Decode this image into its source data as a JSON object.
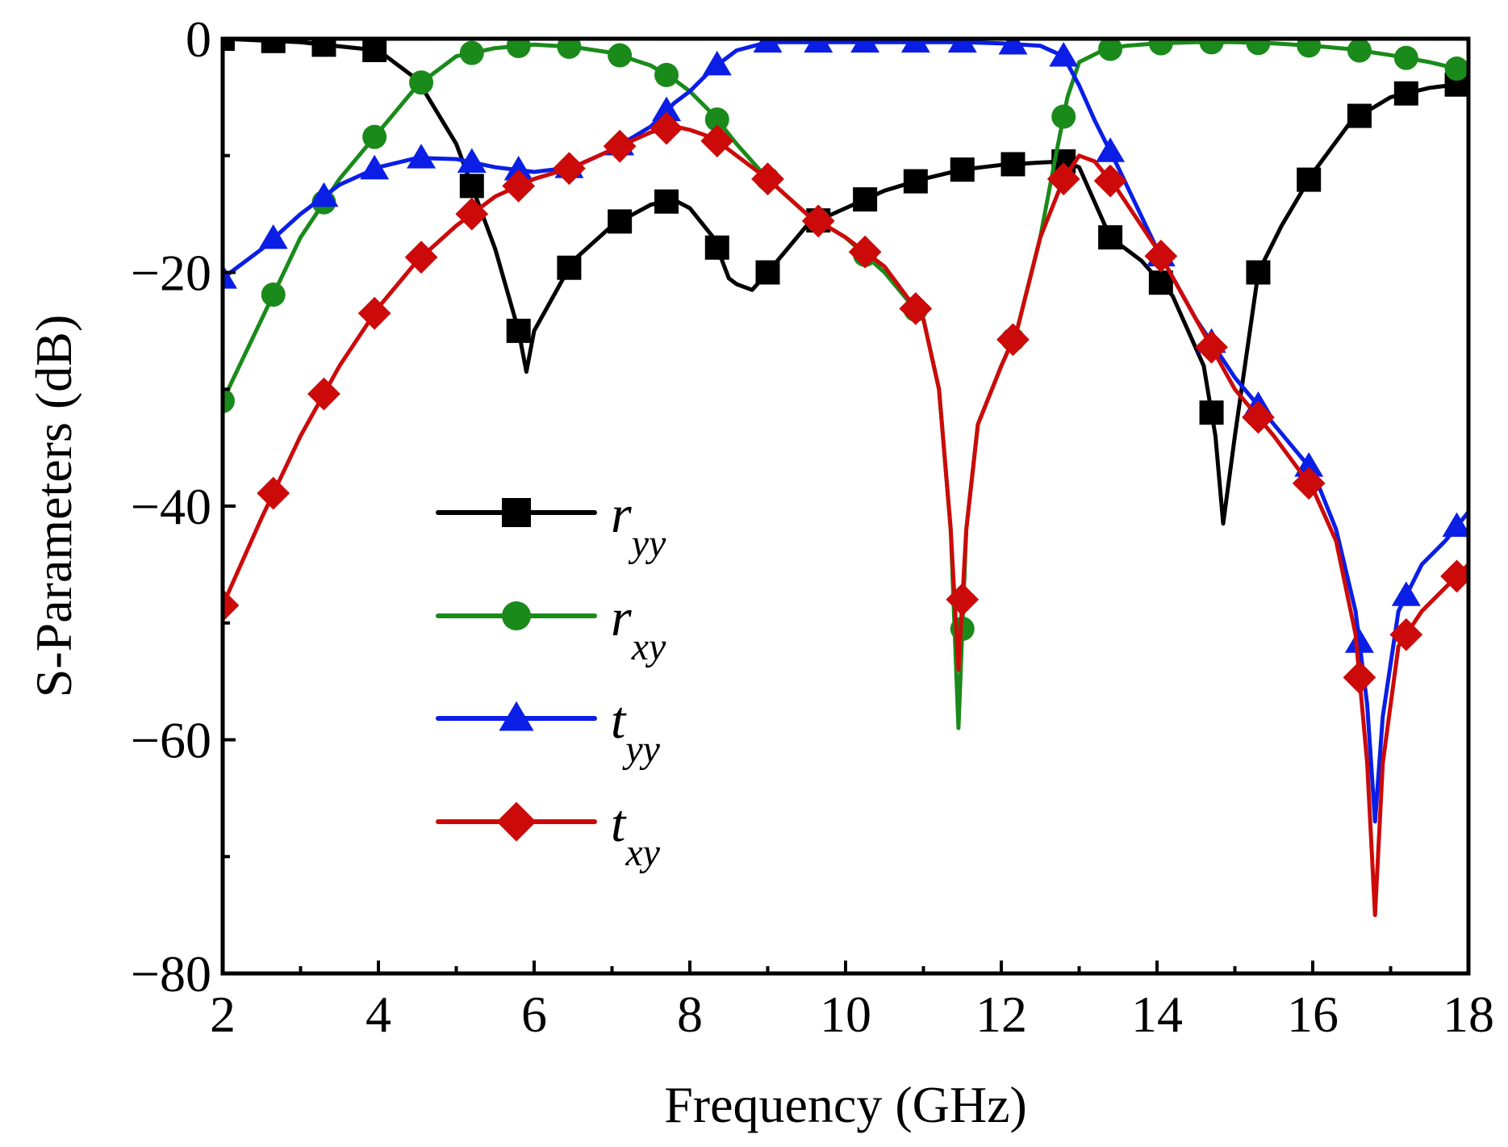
{
  "chart_data": {
    "type": "line",
    "title": "",
    "xlabel": "Frequency (GHz)",
    "ylabel": "S-Parameters (dB)",
    "xlim": [
      2,
      18
    ],
    "ylim": [
      -80,
      0
    ],
    "xticks": [
      2,
      4,
      6,
      8,
      10,
      12,
      14,
      16,
      18
    ],
    "yticks": [
      0,
      -20,
      -40,
      -60,
      -80
    ],
    "xtick_labels": [
      "2",
      "4",
      "6",
      "8",
      "10",
      "12",
      "14",
      "16",
      "18"
    ],
    "ytick_labels": [
      "0",
      "−20",
      "−40",
      "−60",
      "−80"
    ],
    "legend_position": "center-left",
    "series": [
      {
        "name": "r_yy",
        "label_main": "r",
        "label_sub": "yy",
        "color": "#000000",
        "marker": "square",
        "x": [
          2.0,
          3.0,
          4.0,
          4.5,
          5.0,
          5.5,
          5.8,
          5.9,
          6.0,
          6.5,
          7.0,
          7.5,
          7.8,
          8.0,
          8.3,
          8.5,
          8.6,
          8.8,
          9.0,
          9.5,
          10.0,
          10.5,
          11.0,
          11.5,
          12.0,
          12.5,
          12.8,
          13.0,
          13.4,
          13.8,
          14.2,
          14.6,
          14.75,
          14.85,
          15.0,
          15.3,
          15.6,
          16.0,
          16.5,
          17.0,
          17.5,
          18.0
        ],
        "y": [
          0,
          -0.3,
          -1.0,
          -3.5,
          -9,
          -18,
          -25,
          -28.5,
          -25,
          -19,
          -16,
          -14.2,
          -13.8,
          -14.5,
          -17,
          -20.5,
          -21,
          -21.5,
          -20,
          -16,
          -14.5,
          -13,
          -12,
          -11.2,
          -10.8,
          -10.6,
          -10.5,
          -11,
          -17,
          -19,
          -22,
          -28,
          -34,
          -41.5,
          -34,
          -20,
          -16,
          -11.5,
          -7,
          -5,
          -4.2,
          -3.8
        ],
        "marker_x": [
          2.0,
          2.65,
          3.3,
          3.95,
          5.2,
          5.8,
          6.45,
          7.1,
          7.7,
          8.35,
          9.0,
          9.65,
          10.25,
          10.9,
          11.5,
          12.15,
          12.8,
          13.4,
          14.05,
          14.7,
          15.3,
          15.95,
          16.6,
          17.2,
          17.85
        ]
      },
      {
        "name": "r_xy",
        "label_main": "r",
        "label_sub": "xy",
        "color": "#1a8a1a",
        "marker": "circle",
        "x": [
          2.0,
          2.5,
          3.0,
          3.5,
          4.0,
          4.5,
          5.0,
          5.5,
          6.0,
          6.5,
          7.0,
          7.5,
          7.8,
          8.0,
          8.3,
          8.6,
          9.0,
          9.5,
          10.0,
          10.5,
          11.0,
          11.2,
          11.35,
          11.45,
          11.55,
          11.7,
          12.0,
          12.2,
          12.5,
          12.7,
          12.85,
          13.0,
          13.3,
          13.6,
          14.0,
          14.5,
          15.0,
          15.5,
          16.0,
          16.5,
          17.0,
          17.5,
          18.0
        ],
        "y": [
          -31,
          -24,
          -17,
          -12,
          -8,
          -4,
          -1.5,
          -0.8,
          -0.5,
          -0.7,
          -1.2,
          -2.3,
          -3.5,
          -4.5,
          -6.5,
          -9,
          -12,
          -15,
          -17,
          -20,
          -24,
          -30,
          -42,
          -59,
          -42,
          -33,
          -28,
          -25,
          -17,
          -10,
          -5,
          -2,
          -1,
          -0.6,
          -0.4,
          -0.3,
          -0.3,
          -0.4,
          -0.6,
          -0.9,
          -1.4,
          -2,
          -2.8
        ],
        "marker_x": [
          2.0,
          2.65,
          3.3,
          3.95,
          4.55,
          5.2,
          5.8,
          6.45,
          7.1,
          7.7,
          8.35,
          9.0,
          9.65,
          10.25,
          10.9,
          11.5,
          12.15,
          12.8,
          13.4,
          14.05,
          14.7,
          15.3,
          15.95,
          16.6,
          17.2,
          17.85
        ]
      },
      {
        "name": "t_yy",
        "label_main": "t",
        "label_sub": "yy",
        "color": "#0a1ee6",
        "marker": "triangle",
        "x": [
          2.0,
          2.5,
          3.0,
          3.5,
          4.0,
          4.5,
          5.0,
          5.5,
          6.0,
          6.5,
          7.0,
          7.5,
          7.8,
          8.0,
          8.3,
          8.6,
          9.0,
          9.5,
          10.0,
          10.5,
          11.0,
          11.5,
          12.0,
          12.5,
          12.8,
          13.0,
          13.2,
          13.5,
          14.0,
          14.5,
          15.0,
          15.5,
          16.0,
          16.3,
          16.55,
          16.7,
          16.8,
          16.9,
          17.1,
          17.4,
          17.7,
          18.0
        ],
        "y": [
          -20.5,
          -18,
          -15,
          -12.5,
          -11,
          -10.2,
          -10.3,
          -11,
          -11.4,
          -11,
          -9.5,
          -7.5,
          -5.5,
          -4.5,
          -2.5,
          -1,
          -0.3,
          -0.3,
          -0.3,
          -0.3,
          -0.3,
          -0.3,
          -0.4,
          -0.6,
          -1.5,
          -4,
          -7,
          -11,
          -18,
          -24,
          -29,
          -33,
          -37,
          -42,
          -49,
          -57,
          -67,
          -58,
          -49,
          -45,
          -43,
          -40.5
        ],
        "marker_x": [
          2.0,
          2.65,
          3.3,
          3.95,
          4.55,
          5.2,
          5.8,
          6.45,
          7.1,
          7.7,
          8.35,
          9.0,
          9.65,
          10.25,
          10.9,
          11.5,
          12.15,
          12.8,
          13.4,
          14.05,
          14.7,
          15.3,
          15.95,
          16.6,
          17.2,
          17.85
        ]
      },
      {
        "name": "t_xy",
        "label_main": "t",
        "label_sub": "xy",
        "color": "#cc0a0a",
        "marker": "diamond",
        "x": [
          2.0,
          2.5,
          3.0,
          3.5,
          4.0,
          4.5,
          5.0,
          5.5,
          6.0,
          6.5,
          7.0,
          7.5,
          7.8,
          8.0,
          8.3,
          8.6,
          9.0,
          9.5,
          10.0,
          10.5,
          11.0,
          11.2,
          11.35,
          11.45,
          11.55,
          11.7,
          12.0,
          12.2,
          12.5,
          12.8,
          13.0,
          13.2,
          13.5,
          14.0,
          14.5,
          15.0,
          15.5,
          16.0,
          16.3,
          16.55,
          16.7,
          16.8,
          16.9,
          17.1,
          17.4,
          17.7,
          18.0
        ],
        "y": [
          -48.5,
          -41,
          -34,
          -28,
          -23,
          -19,
          -16,
          -13.5,
          -12,
          -11,
          -9.5,
          -8,
          -7.5,
          -7.8,
          -8.5,
          -10,
          -12,
          -15,
          -17,
          -19.5,
          -24,
          -30,
          -42,
          -54,
          -42,
          -33,
          -28,
          -25,
          -17,
          -12,
          -10,
          -10.5,
          -13,
          -18,
          -24,
          -30,
          -34,
          -38.5,
          -43,
          -51,
          -62,
          -75,
          -62,
          -52,
          -49,
          -47,
          -45
        ],
        "marker_x": [
          2.0,
          2.65,
          3.3,
          3.95,
          4.55,
          5.2,
          5.8,
          6.45,
          7.1,
          7.7,
          8.35,
          9.0,
          9.65,
          10.25,
          10.9,
          11.5,
          12.15,
          12.8,
          13.4,
          14.05,
          14.7,
          15.3,
          15.95,
          16.6,
          17.2,
          17.85
        ]
      }
    ]
  }
}
